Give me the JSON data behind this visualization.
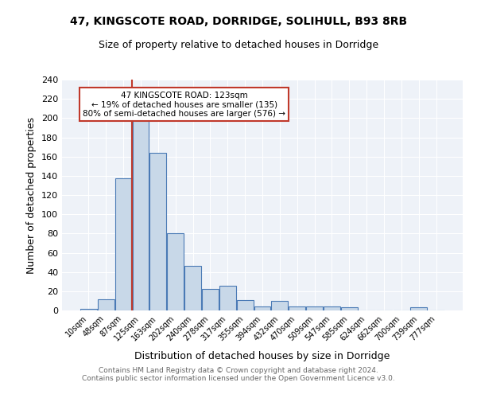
{
  "title1": "47, KINGSCOTE ROAD, DORRIDGE, SOLIHULL, B93 8RB",
  "title2": "Size of property relative to detached houses in Dorridge",
  "xlabel": "Distribution of detached houses by size in Dorridge",
  "ylabel": "Number of detached properties",
  "bin_labels": [
    "10sqm",
    "48sqm",
    "87sqm",
    "125sqm",
    "163sqm",
    "202sqm",
    "240sqm",
    "278sqm",
    "317sqm",
    "355sqm",
    "394sqm",
    "432sqm",
    "470sqm",
    "509sqm",
    "547sqm",
    "585sqm",
    "624sqm",
    "662sqm",
    "700sqm",
    "739sqm",
    "777sqm"
  ],
  "bar_values": [
    2,
    12,
    137,
    199,
    164,
    80,
    46,
    22,
    26,
    11,
    4,
    10,
    4,
    4,
    4,
    3,
    0,
    0,
    0,
    3,
    0
  ],
  "bar_color": "#c8d8e8",
  "bar_edge_color": "#4a7ab5",
  "vline_x": 3,
  "vline_color": "#c0392b",
  "annotation_text": "47 KINGSCOTE ROAD: 123sqm\n← 19% of detached houses are smaller (135)\n80% of semi-detached houses are larger (576) →",
  "annotation_box_color": "#ffffff",
  "annotation_box_edge": "#c0392b",
  "ylim": [
    0,
    240
  ],
  "yticks": [
    0,
    20,
    40,
    60,
    80,
    100,
    120,
    140,
    160,
    180,
    200,
    220,
    240
  ],
  "footer_text": "Contains HM Land Registry data © Crown copyright and database right 2024.\nContains public sector information licensed under the Open Government Licence v3.0.",
  "bg_color": "#eef2f8",
  "plot_bg_color": "#eef2f8"
}
